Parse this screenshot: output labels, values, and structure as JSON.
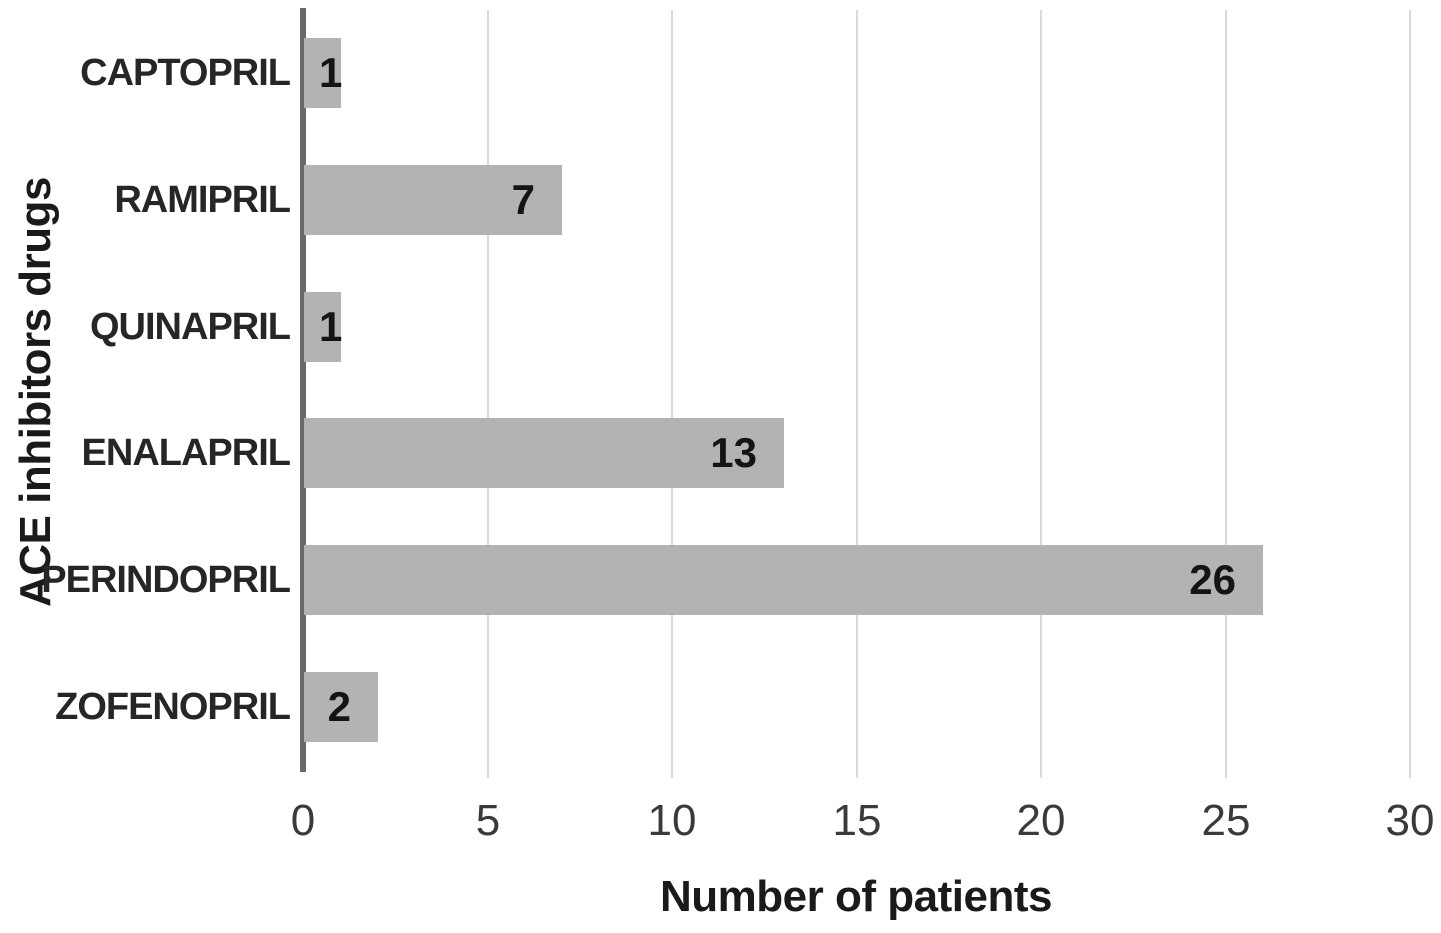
{
  "chart_data": {
    "type": "bar",
    "orientation": "horizontal",
    "title": "",
    "xlabel": "Number of patients",
    "ylabel": "ACE inhibitors drugs",
    "categories": [
      "CAPTOPRIL",
      "RAMIPRIL",
      "QUINAPRIL",
      "ENALAPRIL",
      "PERINDOPRIL",
      "ZOFENOPRIL"
    ],
    "values": [
      1,
      7,
      1,
      13,
      26,
      2
    ],
    "data_labels": [
      1,
      7,
      1,
      13,
      26,
      2
    ],
    "data_label_position": "inside-end",
    "xlim": [
      0,
      30
    ],
    "xticks": [
      0,
      5,
      10,
      15,
      20,
      25,
      30
    ],
    "grid": "vertical-only",
    "legend": "none",
    "colors": {
      "bar_fill": "#b3b3b3",
      "gridline": "#d9d9d9",
      "axis_line": "#696969",
      "tick_label": "#3a3a3a",
      "category_label": "#262626",
      "data_label": "#141414",
      "axis_title": "#1a1a1a",
      "background": "#ffffff"
    }
  }
}
